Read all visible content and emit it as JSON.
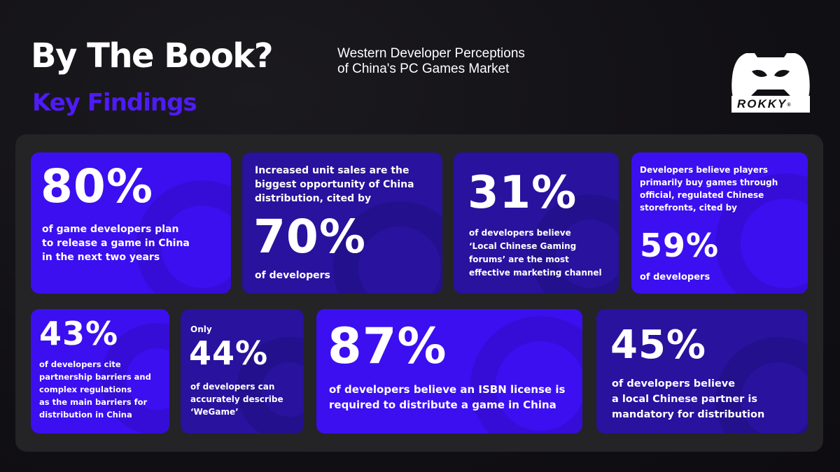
{
  "header": {
    "title": "By The Book?",
    "key_findings": "Key Findings",
    "subtitle_line1": "Western Developer Perceptions",
    "subtitle_line2": "of China's PC Games Market"
  },
  "logo": {
    "word": "ROKKY",
    "mark": "®",
    "icon": "gamepad-icon"
  },
  "colors": {
    "accent": "#4f1bf5",
    "card_bright": "#3b0ff0",
    "card_dark": "#28129e",
    "panel": "#242326",
    "background": "#111014"
  },
  "cards": [
    {
      "stat": "80%",
      "lines": [
        "of game developers plan",
        "to release a game in China",
        "in the next two years"
      ]
    },
    {
      "intro": [
        "Increased unit sales are the",
        "biggest opportunity of China",
        "distribution, cited by"
      ],
      "stat": "70%",
      "lines": [
        "of developers"
      ]
    },
    {
      "stat": "31%",
      "lines": [
        "of developers believe",
        "‘Local Chinese Gaming",
        "forums’ are the most",
        "effective marketing channel"
      ]
    },
    {
      "intro": [
        "Developers believe players",
        "primarily buy games through",
        "official, regulated Chinese",
        "storefronts, cited by"
      ],
      "stat": "59%",
      "lines": [
        "of developers"
      ]
    },
    {
      "stat": "43%",
      "lines": [
        "of developers cite",
        "partnership barriers and",
        "complex regulations",
        "as the main barriers for",
        "distribution in China"
      ]
    },
    {
      "intro": [
        "Only"
      ],
      "stat": "44%",
      "lines": [
        "of developers can",
        "accurately describe",
        "‘WeGame’"
      ]
    },
    {
      "stat": "87%",
      "lines": [
        "of developers believe an ISBN license is",
        "required to distribute a game in China"
      ]
    },
    {
      "stat": "45%",
      "lines": [
        "of developers believe",
        "a local Chinese partner is",
        "mandatory for distribution"
      ]
    }
  ]
}
